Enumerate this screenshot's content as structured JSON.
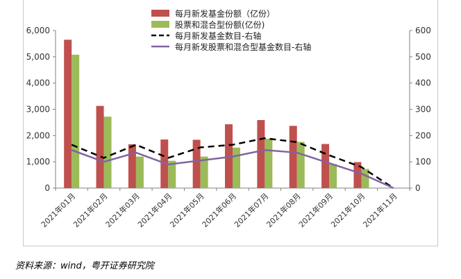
{
  "chart_data": {
    "type": "bar",
    "categories": [
      "2021年01月",
      "2021年02月",
      "2021年03月",
      "2021年04月",
      "2021年05月",
      "2021年06月",
      "2021年07月",
      "2021年08月",
      "2021年09月",
      "2021年10月",
      "2021年11月"
    ],
    "series": [
      {
        "name": "每月新发基金份额（亿份）",
        "kind": "bar",
        "axis": "left",
        "color": "#c0504d",
        "values": [
          5650,
          3130,
          1670,
          1850,
          1840,
          2430,
          2590,
          2370,
          1680,
          990,
          0
        ]
      },
      {
        "name": "股票和混合型份额(亿份)",
        "kind": "bar",
        "axis": "left",
        "color": "#9bbb59",
        "values": [
          5080,
          2720,
          1200,
          1040,
          1200,
          1540,
          1880,
          1760,
          910,
          730,
          0
        ]
      },
      {
        "name": "每月新发基金数目-右轴",
        "kind": "line",
        "axis": "right",
        "color": "#000000",
        "dashed": true,
        "values": [
          165,
          115,
          165,
          115,
          155,
          165,
          190,
          175,
          125,
          80,
          0
        ]
      },
      {
        "name": "每月新发股票和混合型基金数目-右轴",
        "kind": "line",
        "axis": "right",
        "color": "#8064a2",
        "dashed": false,
        "values": [
          145,
          100,
          135,
          90,
          105,
          120,
          145,
          135,
          95,
          55,
          0
        ]
      }
    ],
    "y_left": {
      "min": 0,
      "max": 6000,
      "ticks": [
        "0",
        "1,000",
        "2,000",
        "3,000",
        "4,000",
        "5,000",
        "6,000"
      ]
    },
    "y_right": {
      "min": 0,
      "max": 600,
      "ticks": [
        "0",
        "100",
        "200",
        "300",
        "400",
        "500",
        "600"
      ]
    },
    "legend_position": "top-right",
    "grid": false
  },
  "source": "资料来源：wind，粤开证券研究院"
}
